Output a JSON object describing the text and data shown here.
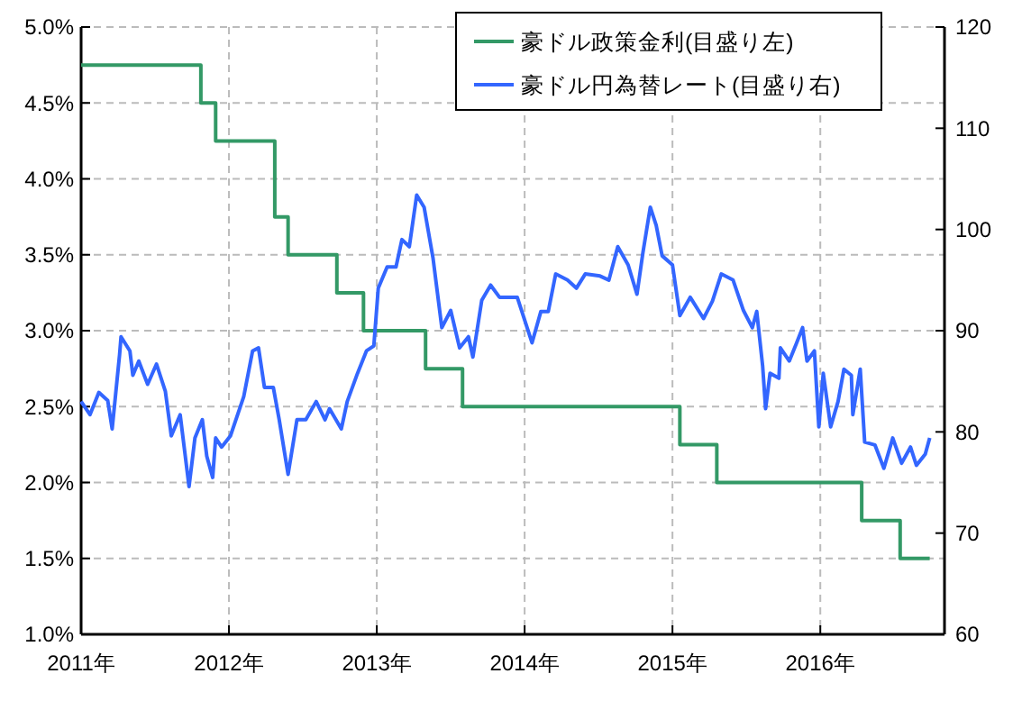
{
  "chart_data": {
    "type": "line",
    "xlim": [
      2011,
      2016.84
    ],
    "xticks": [
      {
        "value": 2011,
        "label": "2011年"
      },
      {
        "value": 2012,
        "label": "2012年"
      },
      {
        "value": 2013,
        "label": "2013年"
      },
      {
        "value": 2014,
        "label": "2014年"
      },
      {
        "value": 2015,
        "label": "2015年"
      },
      {
        "value": 2016,
        "label": "2016年"
      }
    ],
    "ylim": [
      1,
      5
    ],
    "yticks": [
      {
        "value": 1,
        "label": "1.0%"
      },
      {
        "value": 1.5,
        "label": "1.5%"
      },
      {
        "value": 2,
        "label": "2.0%"
      },
      {
        "value": 2.5,
        "label": "2.5%"
      },
      {
        "value": 3,
        "label": "3.0%"
      },
      {
        "value": 3.5,
        "label": "3.5%"
      },
      {
        "value": 4,
        "label": "4.0%"
      },
      {
        "value": 4.5,
        "label": "4.5%"
      },
      {
        "value": 5,
        "label": "5.0%"
      }
    ],
    "y2lim": [
      60,
      120
    ],
    "y2ticks": [
      60,
      70,
      80,
      90,
      100,
      110,
      120
    ],
    "grid": true,
    "legend": "top right",
    "marker": "none",
    "line_style": "solid",
    "series": [
      {
        "name": "豪ドル政策金利(目盛り左)",
        "type": "step",
        "color": "#339966",
        "x": [
          2011,
          2011.81,
          2011.91,
          2012.31,
          2012.4,
          2012.73,
          2012.91,
          2013.33,
          2013.58,
          2015.05,
          2015.3,
          2016.28,
          2016.54,
          2016.74
        ],
        "values": [
          4.75,
          4.5,
          4.25,
          3.75,
          3.5,
          3.25,
          3.0,
          2.75,
          2.5,
          2.25,
          2.0,
          1.75,
          1.5,
          1.5
        ]
      },
      {
        "name": "豪ドル円為替レート(目盛り右)",
        "axis": "y2",
        "color": "#3366ff",
        "x": [
          2011,
          2011.06,
          2011.12,
          2011.18,
          2011.21,
          2011.26,
          2011.27,
          2011.33,
          2011.35,
          2011.39,
          2011.45,
          2011.51,
          2011.57,
          2011.61,
          2011.67,
          2011.73,
          2011.77,
          2011.82,
          2011.85,
          2011.89,
          2011.91,
          2011.95,
          2012.01,
          2012.1,
          2012.16,
          2012.2,
          2012.24,
          2012.3,
          2012.34,
          2012.4,
          2012.46,
          2012.52,
          2012.59,
          2012.65,
          2012.68,
          2012.76,
          2012.8,
          2012.87,
          2012.93,
          2012.98,
          2013.01,
          2013.07,
          2013.13,
          2013.17,
          2013.22,
          2013.27,
          2013.32,
          2013.38,
          2013.44,
          2013.5,
          2013.56,
          2013.62,
          2013.65,
          2013.71,
          2013.77,
          2013.83,
          2013.95,
          2014.05,
          2014.11,
          2014.16,
          2014.21,
          2014.29,
          2014.35,
          2014.41,
          2014.51,
          2014.57,
          2014.63,
          2014.7,
          2014.76,
          2014.8,
          2014.85,
          2014.89,
          2014.93,
          2015.0,
          2015.05,
          2015.12,
          2015.21,
          2015.27,
          2015.33,
          2015.41,
          2015.48,
          2015.54,
          2015.57,
          2015.61,
          2015.63,
          2015.66,
          2015.72,
          2015.73,
          2015.79,
          2015.84,
          2015.88,
          2015.91,
          2015.96,
          2015.99,
          2016.02,
          2016.07,
          2016.12,
          2016.16,
          2016.21,
          2016.22,
          2016.27,
          2016.3,
          2016.37,
          2016.43,
          2016.49,
          2016.55,
          2016.61,
          2016.65,
          2016.71,
          2016.74
        ],
        "values": [
          83.0,
          81.7,
          83.9,
          83.1,
          80.3,
          87.6,
          89.4,
          88.0,
          85.6,
          87.0,
          84.7,
          86.7,
          84.0,
          79.6,
          81.7,
          74.6,
          79.4,
          81.2,
          77.6,
          75.5,
          79.4,
          78.5,
          79.6,
          83.5,
          88.0,
          88.3,
          84.4,
          84.4,
          81.2,
          75.8,
          81.2,
          81.2,
          83.0,
          81.2,
          82.3,
          80.3,
          83.0,
          85.8,
          88.0,
          88.5,
          94.2,
          96.3,
          96.3,
          99.0,
          98.3,
          103.4,
          102.2,
          97.2,
          90.3,
          92.0,
          88.3,
          89.4,
          87.4,
          93.0,
          94.5,
          93.3,
          93.3,
          88.8,
          91.9,
          91.9,
          95.6,
          95.0,
          94.2,
          95.6,
          95.4,
          95.0,
          98.3,
          96.5,
          93.6,
          97.7,
          102.2,
          100.4,
          97.4,
          96.5,
          91.5,
          93.3,
          91.2,
          92.9,
          95.6,
          95.0,
          92.0,
          90.3,
          91.9,
          86.5,
          82.3,
          85.8,
          85.3,
          88.3,
          87.0,
          88.8,
          90.3,
          87.0,
          88.0,
          80.5,
          85.8,
          80.5,
          83.0,
          86.2,
          85.6,
          81.7,
          86.2,
          79.0,
          78.7,
          76.4,
          79.4,
          76.9,
          78.5,
          76.7,
          77.8,
          79.4
        ]
      }
    ]
  }
}
